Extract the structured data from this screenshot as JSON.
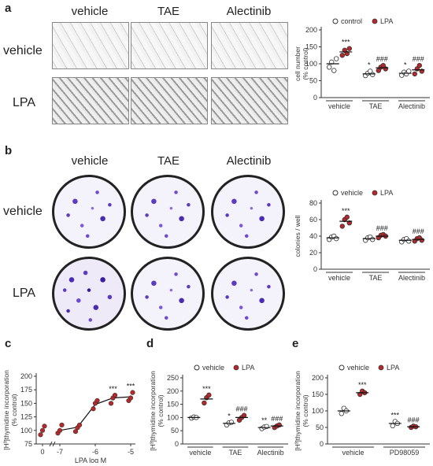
{
  "colors": {
    "lpa": "#b8282a",
    "control": "#ffffff",
    "axis": "#333333",
    "stain": "#5a3cc0"
  },
  "panel_a": {
    "letter": "a",
    "columns": [
      "vehicle",
      "TAE",
      "Alectinib"
    ],
    "rows": [
      "vehicle",
      "LPA"
    ]
  },
  "panel_b": {
    "letter": "b",
    "columns": [
      "vehicle",
      "TAE",
      "Alectinib"
    ],
    "rows": [
      "vehicle",
      "LPA"
    ]
  },
  "panel_c": {
    "letter": "c"
  },
  "panel_d": {
    "letter": "d"
  },
  "panel_e": {
    "letter": "e"
  },
  "chart_data": [
    {
      "id": "a",
      "type": "scatter",
      "ylabel": [
        "cell number",
        "(% control)"
      ],
      "ylim": [
        0,
        200
      ],
      "yticks": [
        0,
        50,
        100,
        150,
        200
      ],
      "categories": [
        "vehicle",
        "TAE",
        "Alectinib"
      ],
      "legend": [
        "control",
        "LPA"
      ],
      "series": [
        {
          "name": "control",
          "values": [
            100,
            70,
            72
          ],
          "points": [
            [
              90,
              105,
              80,
              115
            ],
            [
              65,
              72,
              78,
              68
            ],
            [
              66,
              75,
              70,
              78
            ]
          ],
          "sig": [
            "",
            "*",
            "*"
          ]
        },
        {
          "name": "LPA",
          "values": [
            135,
            88,
            82
          ],
          "points": [
            [
              125,
              140,
              130,
              145
            ],
            [
              80,
              90,
              95,
              85
            ],
            [
              70,
              85,
              95,
              78
            ]
          ],
          "sig": [
            "***",
            "###",
            "###"
          ]
        }
      ]
    },
    {
      "id": "b",
      "type": "scatter",
      "ylabel": [
        "colonies / well"
      ],
      "ylim": [
        0,
        80
      ],
      "yticks": [
        0,
        20,
        40,
        60,
        80
      ],
      "categories": [
        "vehicle",
        "TAE",
        "Alectinib"
      ],
      "legend": [
        "vehicle",
        "LPA"
      ],
      "series": [
        {
          "name": "vehicle",
          "values": [
            38,
            37,
            35
          ],
          "points": [
            [
              36,
              39,
              40,
              37
            ],
            [
              35,
              38,
              39,
              36
            ],
            [
              33,
              36,
              37,
              34
            ]
          ],
          "sig": [
            "",
            "",
            ""
          ]
        },
        {
          "name": "LPA",
          "values": [
            58,
            40,
            36
          ],
          "points": [
            [
              52,
              60,
              63,
              56
            ],
            [
              38,
              41,
              42,
              40
            ],
            [
              34,
              37,
              38,
              35
            ]
          ],
          "sig": [
            "***",
            "###",
            "###"
          ]
        }
      ]
    },
    {
      "id": "c",
      "type": "scatter",
      "ylabel": [
        "[H³]thymidine incorporation",
        "(% control)"
      ],
      "xlabel": "LPA log M",
      "ylim": [
        75,
        200
      ],
      "yticks": [
        75,
        100,
        125,
        150,
        175,
        200
      ],
      "xticks": [
        "0",
        "-7",
        "-6",
        "-5"
      ],
      "x": [
        0,
        -7,
        -6.5,
        -6,
        -5.5,
        -5
      ],
      "points": [
        [
          92,
          100,
          108
        ],
        [
          95,
          100,
          110
        ],
        [
          98,
          105,
          110
        ],
        [
          140,
          150,
          155
        ],
        [
          150,
          160,
          165
        ],
        [
          155,
          160,
          170
        ]
      ],
      "fit": [
        100,
        100,
        106,
        148,
        160,
        162
      ],
      "sig": [
        "",
        "",
        "",
        "",
        "***",
        "***"
      ]
    },
    {
      "id": "d",
      "type": "scatter",
      "ylabel": [
        "[H³]thymidine incorporation",
        "(% control)"
      ],
      "ylim": [
        0,
        250
      ],
      "yticks": [
        0,
        50,
        100,
        150,
        200,
        250
      ],
      "categories": [
        "vehicle",
        "TAE",
        "Alectinib"
      ],
      "legend": [
        "vehicle",
        "LPA"
      ],
      "series": [
        {
          "name": "vehicle",
          "values": [
            100,
            78,
            62
          ],
          "points": [
            [
              98,
              102,
              100
            ],
            [
              72,
              80,
              82
            ],
            [
              58,
              64,
              66
            ]
          ],
          "sig": [
            "",
            "*",
            "**"
          ]
        },
        {
          "name": "LPA",
          "values": [
            170,
            100,
            68
          ],
          "points": [
            [
              155,
              175,
              185
            ],
            [
              90,
              100,
              108
            ],
            [
              62,
              68,
              72
            ]
          ],
          "sig": [
            "***",
            "###",
            "###"
          ]
        }
      ]
    },
    {
      "id": "e",
      "type": "scatter",
      "ylabel": [
        "[H³]thymidine incorporation",
        "(% control)"
      ],
      "ylim": [
        0,
        200
      ],
      "yticks": [
        0,
        50,
        100,
        150,
        200
      ],
      "categories": [
        "vehicle",
        "PD98059"
      ],
      "legend": [
        "vehicle",
        "LPA"
      ],
      "series": [
        {
          "name": "vehicle",
          "values": [
            100,
            62
          ],
          "points": [
            [
              92,
              108,
              100
            ],
            [
              55,
              68,
              62
            ]
          ],
          "sig": [
            "",
            "***"
          ]
        },
        {
          "name": "LPA",
          "values": [
            155,
            52
          ],
          "points": [
            [
              150,
              160,
              155
            ],
            [
              50,
              54,
              52
            ]
          ],
          "sig": [
            "***",
            "###"
          ]
        }
      ]
    }
  ]
}
